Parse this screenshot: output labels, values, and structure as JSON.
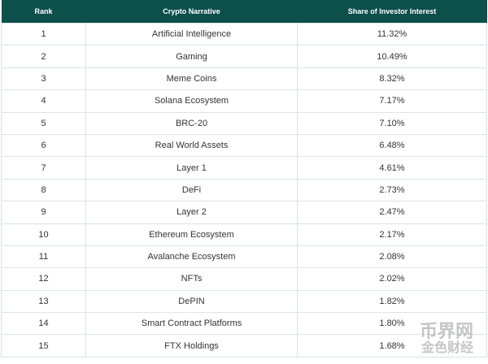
{
  "table": {
    "header": [
      "Rank",
      "Crypto Narrative",
      "Share of Investor Interest"
    ],
    "rows": [
      [
        "1",
        "Artificial Intelligence",
        "11.32%"
      ],
      [
        "2",
        "Gaming",
        "10.49%"
      ],
      [
        "3",
        "Meme Coins",
        "8.32%"
      ],
      [
        "4",
        "Solana Ecosystem",
        "7.17%"
      ],
      [
        "5",
        "BRC-20",
        "7.10%"
      ],
      [
        "6",
        "Real World Assets",
        "6.48%"
      ],
      [
        "7",
        "Layer 1",
        "4.61%"
      ],
      [
        "8",
        "DeFi",
        "2.73%"
      ],
      [
        "9",
        "Layer 2",
        "2.47%"
      ],
      [
        "10",
        "Ethereum Ecosystem",
        "2.17%"
      ],
      [
        "11",
        "Avalanche Ecosystem",
        "2.08%"
      ],
      [
        "12",
        "NFTs",
        "2.02%"
      ],
      [
        "13",
        "DePIN",
        "1.82%"
      ],
      [
        "14",
        "Smart Contract Platforms",
        "1.80%"
      ],
      [
        "15",
        "FTX Holdings",
        "1.68%"
      ]
    ]
  },
  "watermark": [
    "币界网",
    "金色财经"
  ]
}
